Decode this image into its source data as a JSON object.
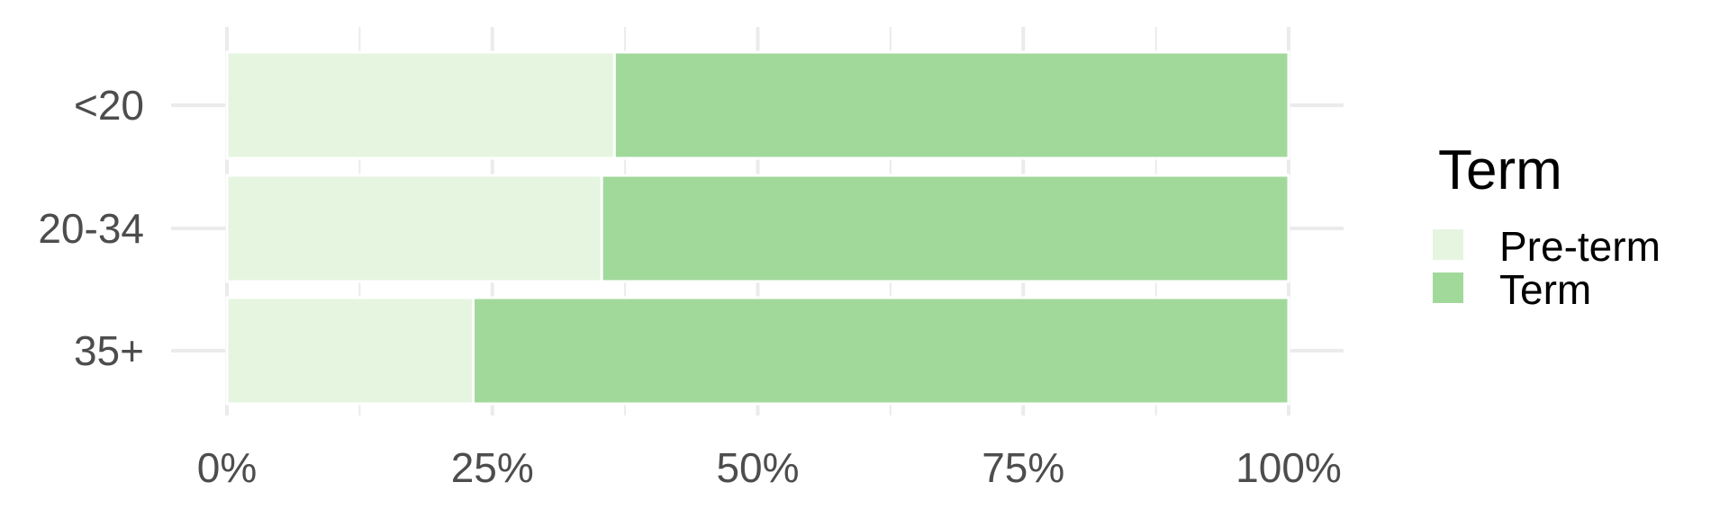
{
  "chart_data": {
    "type": "bar",
    "orientation": "horizontal",
    "stacked": "percent",
    "categories": [
      "<20",
      "20-34",
      "35+"
    ],
    "series": [
      {
        "name": "Pre-term",
        "values": [
          36.5,
          35.3,
          23.2
        ],
        "color": "#e5f5e0"
      },
      {
        "name": "Term",
        "values": [
          63.5,
          64.7,
          76.8
        ],
        "color": "#a1d99b"
      }
    ],
    "xlim": [
      0,
      100
    ],
    "x_ticks": [
      "0%",
      "25%",
      "50%",
      "75%",
      "100%"
    ],
    "x_tick_values": [
      0,
      25,
      50,
      75,
      100
    ],
    "grid": true,
    "legend": {
      "title": "Term",
      "position": "right"
    }
  }
}
